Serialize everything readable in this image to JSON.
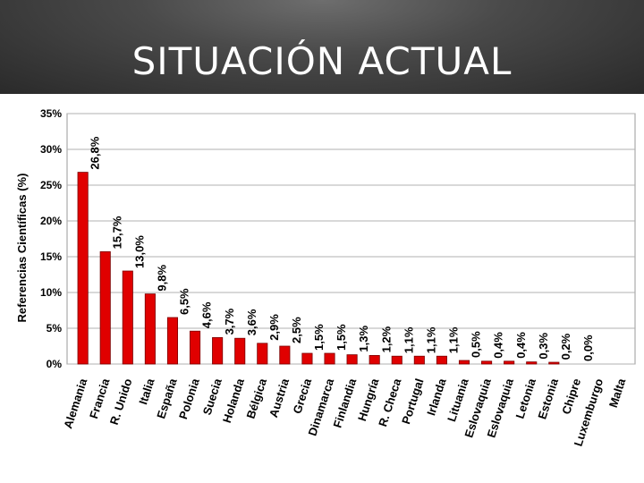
{
  "slide": {
    "title": "SITUACIÓN ACTUAL"
  },
  "chart_data": {
    "type": "bar",
    "ylabel": "Referencias Científicas (%)",
    "xlabel": "",
    "ylim": [
      0,
      35
    ],
    "yticks": [
      "0%",
      "5%",
      "10%",
      "15%",
      "20%",
      "25%",
      "30%",
      "35%"
    ],
    "ytick_values": [
      0,
      5,
      10,
      15,
      20,
      25,
      30,
      35
    ],
    "grid": true,
    "bar_color": "#e00000",
    "categories": [
      "Alemania",
      "Francia",
      "R. Unido",
      "Italia",
      "España",
      "Polonia",
      "Suecia",
      "Holanda",
      "Bélgica",
      "Austria",
      "Grecia",
      "Dinamarca",
      "Finlandia",
      "Hungría",
      "R. Checa",
      "Portugal",
      "Irlanda",
      "Lituania",
      "Eslovaquia",
      "Eslovaquia",
      "Letonia",
      "Estonia",
      "Chipre",
      "Luxemburgo",
      "Malta"
    ],
    "values": [
      26.8,
      15.7,
      13.0,
      9.8,
      6.5,
      4.6,
      3.7,
      3.6,
      2.9,
      2.5,
      1.5,
      1.5,
      1.3,
      1.2,
      1.1,
      1.1,
      1.1,
      0.5,
      0.4,
      0.4,
      0.3,
      0.2,
      0.0,
      0.0,
      0.0
    ],
    "value_labels": [
      "26,8%",
      "15,7%",
      "13,0%",
      "9,8%",
      "6,5%",
      "4,6%",
      "3,7%",
      "3,6%",
      "2,9%",
      "2,5%",
      "1,5%",
      "1,5%",
      "1,3%",
      "1,2%",
      "1,1%",
      "1,1%",
      "1,1%",
      "0,5%",
      "0,4%",
      "0,4%",
      "0,3%",
      "0,2%",
      "0,0%",
      "",
      ""
    ]
  }
}
